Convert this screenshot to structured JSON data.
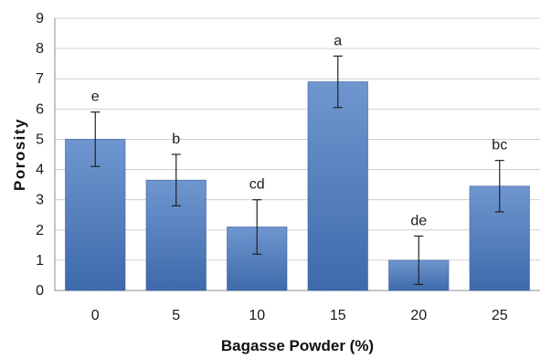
{
  "chart_data": {
    "type": "bar",
    "categories": [
      "0",
      "5",
      "10",
      "15",
      "20",
      "25"
    ],
    "values": [
      5.0,
      3.65,
      2.1,
      6.9,
      1.0,
      3.45
    ],
    "errors": [
      0.9,
      0.85,
      0.9,
      0.85,
      0.8,
      0.85
    ],
    "significance_labels": [
      "e",
      "b",
      "cd",
      "a",
      "de",
      "bc"
    ],
    "title": "",
    "xlabel": "Bagasse Powder (%)",
    "ylabel": "Porosity",
    "ylim": [
      0,
      9
    ],
    "yticks": [
      0,
      1,
      2,
      3,
      4,
      5,
      6,
      7,
      8,
      9
    ],
    "grid": true,
    "legend": "none",
    "colors": {
      "bar_top": "#6f96cf",
      "bar_bottom": "#3e6aab",
      "error_bar": "#222222",
      "grid": "#d0d0d0"
    }
  }
}
